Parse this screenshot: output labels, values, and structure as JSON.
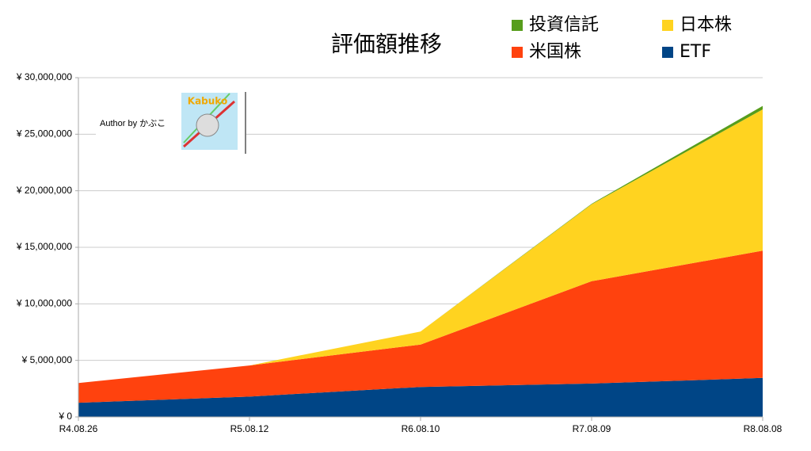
{
  "chart_data": {
    "type": "stacked-area",
    "title": "評価額推移",
    "categories": [
      "R4.08.26",
      "R5.08.12",
      "R6.08.10",
      "R7.08.09",
      "R8.08.08"
    ],
    "series": [
      {
        "name": "ETF",
        "color": "#004586",
        "values": [
          1250000,
          1800000,
          2650000,
          2950000,
          3450000
        ]
      },
      {
        "name": "米国株",
        "color": "#ff420e",
        "values": [
          1750000,
          2750000,
          3750000,
          9050000,
          11250000
        ]
      },
      {
        "name": "日本株",
        "color": "#ffd320",
        "values": [
          0,
          0,
          1150000,
          6800000,
          12500000
        ]
      },
      {
        "name": "投資信託",
        "color": "#579d1c",
        "values": [
          0,
          0,
          0,
          50000,
          300000
        ]
      }
    ],
    "ylim": [
      0,
      30000000
    ],
    "yticks": [
      {
        "value": 0,
        "label": "¥ 0"
      },
      {
        "value": 5000000,
        "label": "¥ 5,000,000"
      },
      {
        "value": 10000000,
        "label": "¥ 10,000,000"
      },
      {
        "value": 15000000,
        "label": "¥ 15,000,000"
      },
      {
        "value": 20000000,
        "label": "¥ 20,000,000"
      },
      {
        "value": 25000000,
        "label": "¥ 25,000,000"
      },
      {
        "value": 30000000,
        "label": "¥ 30,000,000"
      }
    ],
    "grid": true,
    "annotations": {
      "author": "Author by かぶこ",
      "logo": "Kabuko"
    }
  }
}
